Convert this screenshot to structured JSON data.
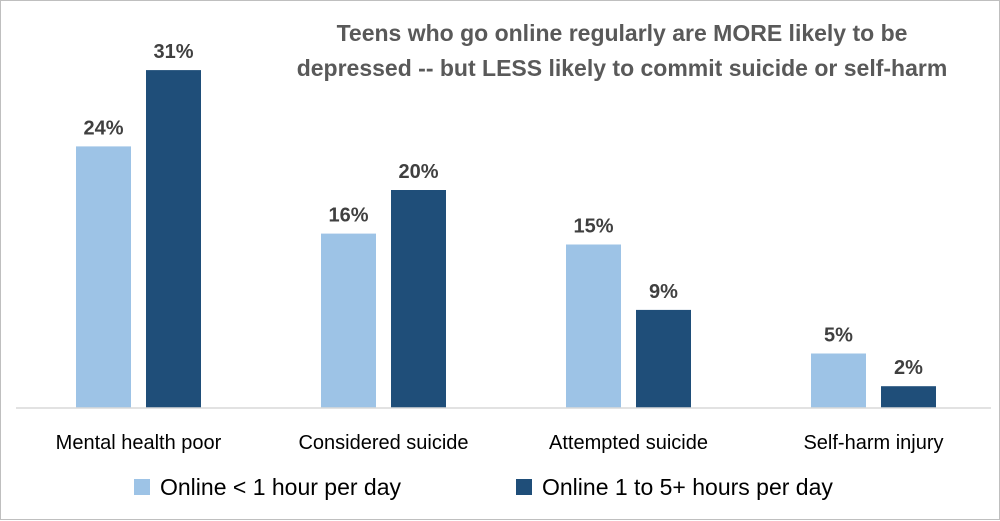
{
  "chart_data": {
    "type": "bar",
    "title_lines": [
      "Teens who go online regularly are MORE likely to be",
      "depressed -- but LESS likely to commit suicide or self-harm"
    ],
    "categories": [
      "Mental health poor",
      "Considered suicide",
      "Attempted suicide",
      "Self-harm injury"
    ],
    "series": [
      {
        "name": "Online < 1 hour per day",
        "values": [
          24,
          16,
          15,
          5
        ],
        "labels": [
          "24%",
          "16%",
          "15%",
          "5%"
        ],
        "color": "#9dc3e6"
      },
      {
        "name": "Online 1 to 5+ hours per day",
        "values": [
          31,
          20,
          9,
          2
        ],
        "labels": [
          "31%",
          "20%",
          "9%",
          "2%"
        ],
        "color": "#1f4e79"
      }
    ],
    "unit": "%",
    "ylim": [
      0,
      40
    ],
    "grid": false,
    "legend_position": "bottom",
    "axis_color": "#d9d9d9"
  }
}
